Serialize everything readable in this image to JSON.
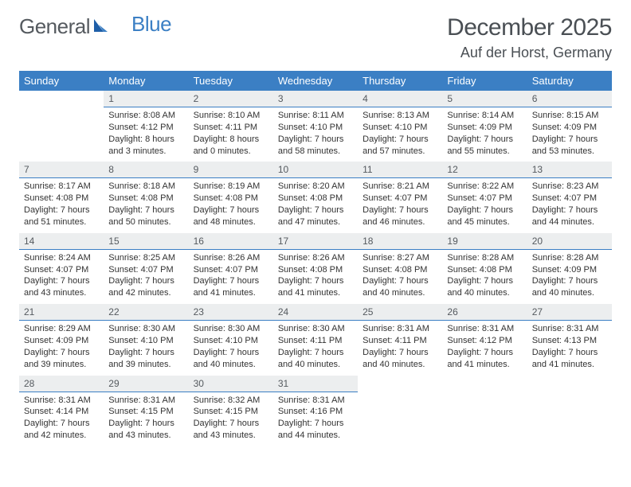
{
  "colors": {
    "header_bg": "#3b7fc4",
    "header_text": "#ffffff",
    "daynum_bg": "#eceeef",
    "daynum_border": "#3b7fc4",
    "body_text": "#333333",
    "title_text": "#4a4f54",
    "logo_gray": "#555a5f",
    "logo_blue": "#3b7fc4",
    "background": "#ffffff"
  },
  "typography": {
    "body_family": "Arial, Helvetica, sans-serif",
    "month_title_size_pt": 22,
    "location_size_pt": 13,
    "weekday_size_pt": 10,
    "cell_size_pt": 8
  },
  "logo": {
    "part1": "General",
    "part2": "Blue"
  },
  "title": "December 2025",
  "location": "Auf der Horst, Germany",
  "weekdays": [
    "Sunday",
    "Monday",
    "Tuesday",
    "Wednesday",
    "Thursday",
    "Friday",
    "Saturday"
  ],
  "layout": {
    "columns": 7,
    "rows": 5,
    "first_day_column_index": 1
  },
  "days": [
    {
      "n": 1,
      "sr": "8:08 AM",
      "ss": "4:12 PM",
      "dl": "8 hours and 3 minutes."
    },
    {
      "n": 2,
      "sr": "8:10 AM",
      "ss": "4:11 PM",
      "dl": "8 hours and 0 minutes."
    },
    {
      "n": 3,
      "sr": "8:11 AM",
      "ss": "4:10 PM",
      "dl": "7 hours and 58 minutes."
    },
    {
      "n": 4,
      "sr": "8:13 AM",
      "ss": "4:10 PM",
      "dl": "7 hours and 57 minutes."
    },
    {
      "n": 5,
      "sr": "8:14 AM",
      "ss": "4:09 PM",
      "dl": "7 hours and 55 minutes."
    },
    {
      "n": 6,
      "sr": "8:15 AM",
      "ss": "4:09 PM",
      "dl": "7 hours and 53 minutes."
    },
    {
      "n": 7,
      "sr": "8:17 AM",
      "ss": "4:08 PM",
      "dl": "7 hours and 51 minutes."
    },
    {
      "n": 8,
      "sr": "8:18 AM",
      "ss": "4:08 PM",
      "dl": "7 hours and 50 minutes."
    },
    {
      "n": 9,
      "sr": "8:19 AM",
      "ss": "4:08 PM",
      "dl": "7 hours and 48 minutes."
    },
    {
      "n": 10,
      "sr": "8:20 AM",
      "ss": "4:08 PM",
      "dl": "7 hours and 47 minutes."
    },
    {
      "n": 11,
      "sr": "8:21 AM",
      "ss": "4:07 PM",
      "dl": "7 hours and 46 minutes."
    },
    {
      "n": 12,
      "sr": "8:22 AM",
      "ss": "4:07 PM",
      "dl": "7 hours and 45 minutes."
    },
    {
      "n": 13,
      "sr": "8:23 AM",
      "ss": "4:07 PM",
      "dl": "7 hours and 44 minutes."
    },
    {
      "n": 14,
      "sr": "8:24 AM",
      "ss": "4:07 PM",
      "dl": "7 hours and 43 minutes."
    },
    {
      "n": 15,
      "sr": "8:25 AM",
      "ss": "4:07 PM",
      "dl": "7 hours and 42 minutes."
    },
    {
      "n": 16,
      "sr": "8:26 AM",
      "ss": "4:07 PM",
      "dl": "7 hours and 41 minutes."
    },
    {
      "n": 17,
      "sr": "8:26 AM",
      "ss": "4:08 PM",
      "dl": "7 hours and 41 minutes."
    },
    {
      "n": 18,
      "sr": "8:27 AM",
      "ss": "4:08 PM",
      "dl": "7 hours and 40 minutes."
    },
    {
      "n": 19,
      "sr": "8:28 AM",
      "ss": "4:08 PM",
      "dl": "7 hours and 40 minutes."
    },
    {
      "n": 20,
      "sr": "8:28 AM",
      "ss": "4:09 PM",
      "dl": "7 hours and 40 minutes."
    },
    {
      "n": 21,
      "sr": "8:29 AM",
      "ss": "4:09 PM",
      "dl": "7 hours and 39 minutes."
    },
    {
      "n": 22,
      "sr": "8:30 AM",
      "ss": "4:10 PM",
      "dl": "7 hours and 39 minutes."
    },
    {
      "n": 23,
      "sr": "8:30 AM",
      "ss": "4:10 PM",
      "dl": "7 hours and 40 minutes."
    },
    {
      "n": 24,
      "sr": "8:30 AM",
      "ss": "4:11 PM",
      "dl": "7 hours and 40 minutes."
    },
    {
      "n": 25,
      "sr": "8:31 AM",
      "ss": "4:11 PM",
      "dl": "7 hours and 40 minutes."
    },
    {
      "n": 26,
      "sr": "8:31 AM",
      "ss": "4:12 PM",
      "dl": "7 hours and 41 minutes."
    },
    {
      "n": 27,
      "sr": "8:31 AM",
      "ss": "4:13 PM",
      "dl": "7 hours and 41 minutes."
    },
    {
      "n": 28,
      "sr": "8:31 AM",
      "ss": "4:14 PM",
      "dl": "7 hours and 42 minutes."
    },
    {
      "n": 29,
      "sr": "8:31 AM",
      "ss": "4:15 PM",
      "dl": "7 hours and 43 minutes."
    },
    {
      "n": 30,
      "sr": "8:32 AM",
      "ss": "4:15 PM",
      "dl": "7 hours and 43 minutes."
    },
    {
      "n": 31,
      "sr": "8:31 AM",
      "ss": "4:16 PM",
      "dl": "7 hours and 44 minutes."
    }
  ],
  "labels": {
    "sunrise": "Sunrise:",
    "sunset": "Sunset:",
    "daylight": "Daylight:"
  }
}
